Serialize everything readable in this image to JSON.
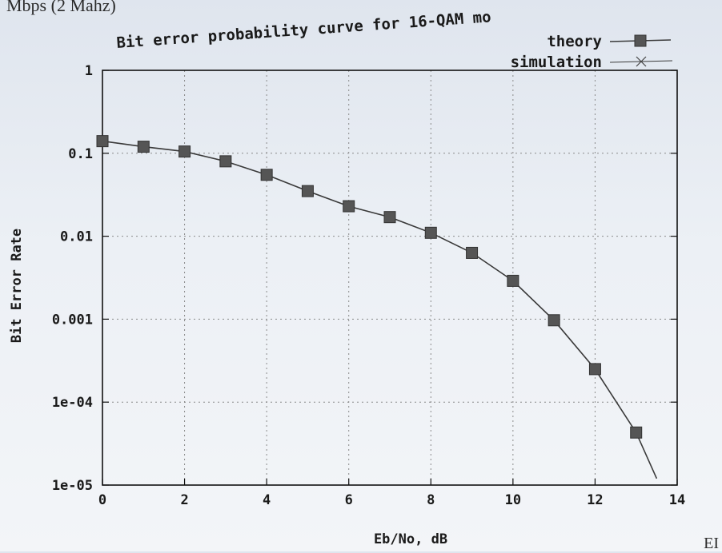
{
  "page": {
    "header_fragment": "Mbps (2 Mahz)",
    "footer_fragment": "EI"
  },
  "chart_data": {
    "type": "line",
    "title": "Bit error probability curve for 16-QAM mo",
    "xlabel": "Eb/No, dB",
    "ylabel": "Bit Error Rate",
    "xlim": [
      0,
      14
    ],
    "ylim": [
      1e-05,
      1
    ],
    "yscale": "log",
    "grid": true,
    "legend_position": "top-right",
    "x_ticks": [
      "0",
      "2",
      "4",
      "6",
      "8",
      "10",
      "12",
      "14"
    ],
    "y_ticks": [
      "1e-05",
      "1e-04",
      "0.001",
      "0.01",
      "0.1",
      "1"
    ],
    "x": [
      0,
      1,
      2,
      3,
      4,
      5,
      6,
      7,
      8,
      9,
      10,
      11,
      12,
      13
    ],
    "series": [
      {
        "name": "theory",
        "marker": "filled-square",
        "x": [
          0,
          1,
          2,
          3,
          4,
          5,
          6,
          7,
          8,
          9,
          10,
          11,
          12,
          13,
          13.5
        ],
        "values": [
          0.14,
          0.12,
          0.105,
          0.08,
          0.055,
          0.035,
          0.023,
          0.017,
          0.011,
          0.0063,
          0.0029,
          0.00097,
          0.00025,
          4.3e-05,
          1.2e-05
        ]
      },
      {
        "name": "simulation",
        "marker": "cross",
        "x": [
          0,
          1,
          2,
          3,
          4,
          5,
          6,
          7,
          8,
          9,
          10,
          11,
          12,
          13
        ],
        "values": [
          0.14,
          0.12,
          0.105,
          0.08,
          0.055,
          0.035,
          0.023,
          0.017,
          0.011,
          0.0063,
          0.0029,
          0.00097,
          0.00025,
          4.3e-05
        ]
      }
    ],
    "colors": {
      "line": "#3a3a3a",
      "marker": "#555555",
      "grid": "#8a8a8a",
      "axis": "#111111"
    }
  }
}
